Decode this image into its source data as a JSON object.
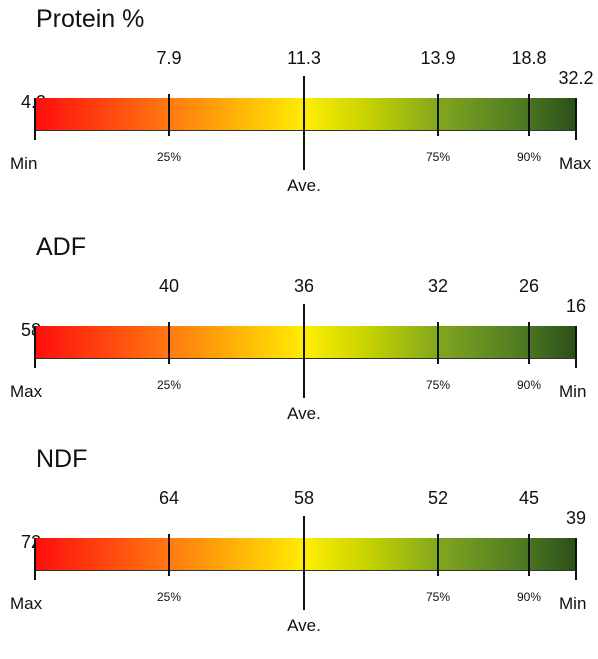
{
  "scales": [
    {
      "title": "Protein %",
      "min_value": "4.2",
      "p25_value": "7.9",
      "ave_value": "11.3",
      "p75_value": "13.9",
      "p90_value": "18.8",
      "max_value": "32.2",
      "left_label": "Min",
      "right_label": "Max",
      "p25_label": "25%",
      "p75_label": "75%",
      "p90_label": "90%",
      "ave_label": "Ave."
    },
    {
      "title": "ADF",
      "min_value": "58",
      "p25_value": "40",
      "ave_value": "36",
      "p75_value": "32",
      "p90_value": "26",
      "max_value": "16",
      "left_label": "Max",
      "right_label": "Min",
      "p25_label": "25%",
      "p75_label": "75%",
      "p90_label": "90%",
      "ave_label": "Ave."
    },
    {
      "title": "NDF",
      "min_value": "72",
      "p25_value": "64",
      "ave_value": "58",
      "p75_value": "52",
      "p90_value": "45",
      "max_value": "39",
      "left_label": "Max",
      "right_label": "Min",
      "p25_label": "25%",
      "p75_label": "75%",
      "p90_label": "90%",
      "ave_label": "Ave."
    }
  ],
  "gradient_colors": [
    "#ff0d0d",
    "#ff7a10",
    "#ffee00",
    "#7fa51f",
    "#2a4f18"
  ]
}
